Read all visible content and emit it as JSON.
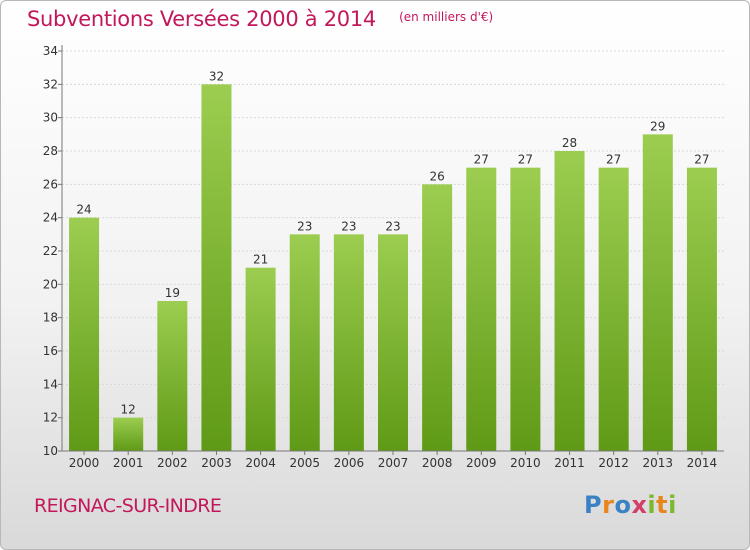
{
  "header": {
    "title": "Subventions Versées 2000 à 2014",
    "unit": "(en milliers d'€)"
  },
  "footer": {
    "town": "REIGNAC-SUR-INDRE",
    "logo": "Proxiti"
  },
  "colors": {
    "title": "#c2185b",
    "bar_top": "#9ccd50",
    "bar_bottom": "#5f9a16"
  },
  "chart_data": {
    "type": "bar",
    "title": "Subventions Versées 2000 à 2014",
    "categories": [
      "2000",
      "2001",
      "2002",
      "2003",
      "2004",
      "2005",
      "2006",
      "2007",
      "2008",
      "2009",
      "2010",
      "2011",
      "2012",
      "2013",
      "2014"
    ],
    "values": [
      24,
      12,
      19,
      32,
      21,
      23,
      23,
      23,
      26,
      27,
      27,
      28,
      27,
      29,
      27
    ],
    "ylim": [
      10,
      34
    ],
    "yticks": [
      10,
      12,
      14,
      16,
      18,
      20,
      22,
      24,
      26,
      28,
      30,
      32,
      34
    ],
    "grid": true,
    "xlabel": "",
    "ylabel": ""
  }
}
